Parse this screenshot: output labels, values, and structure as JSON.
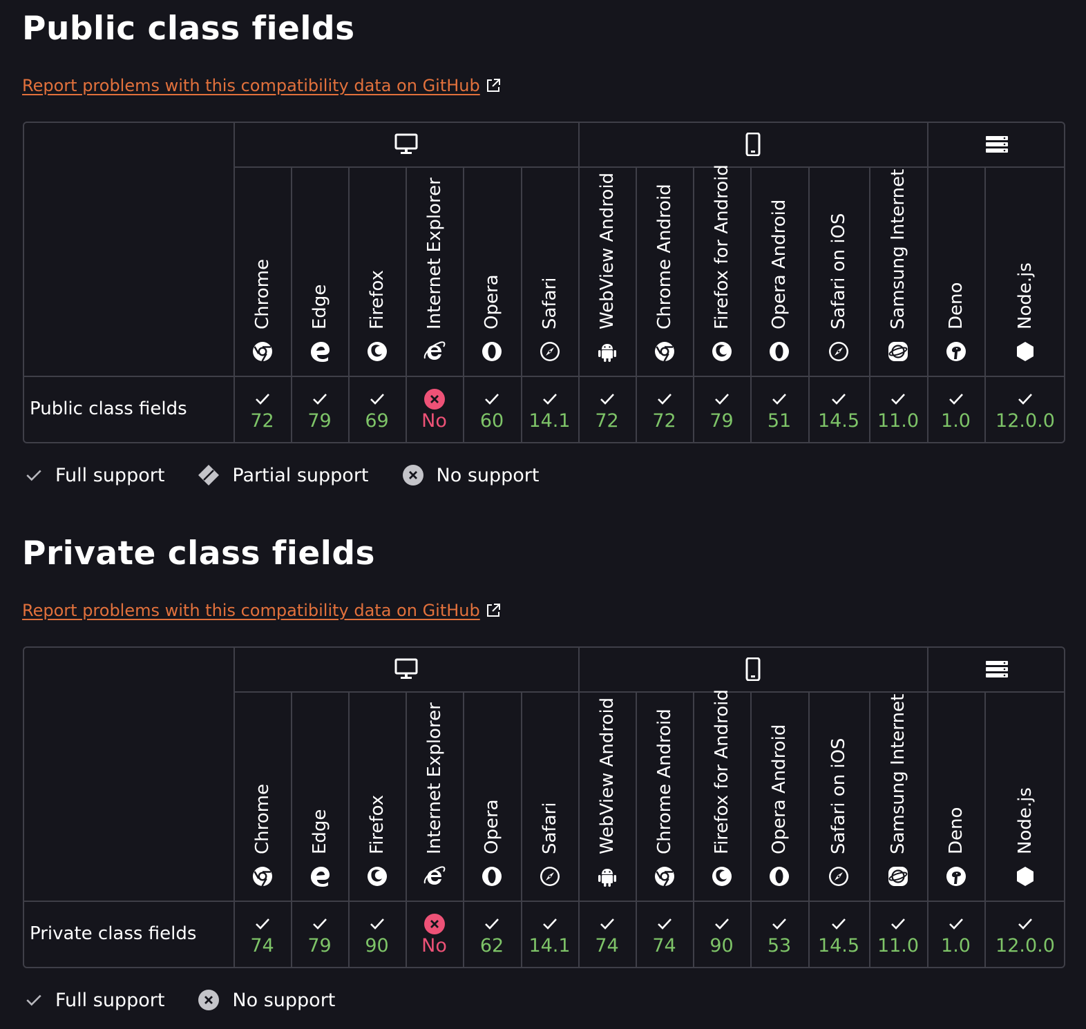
{
  "sections": [
    {
      "title": "Public class fields",
      "report_link": "Report problems with this compatibility data on GitHub",
      "feature": "Public class fields",
      "support": [
        {
          "version": "72",
          "status": "full"
        },
        {
          "version": "79",
          "status": "full"
        },
        {
          "version": "69",
          "status": "full"
        },
        {
          "version": "No",
          "status": "none"
        },
        {
          "version": "60",
          "status": "full"
        },
        {
          "version": "14.1",
          "status": "full"
        },
        {
          "version": "72",
          "status": "full"
        },
        {
          "version": "72",
          "status": "full"
        },
        {
          "version": "79",
          "status": "full"
        },
        {
          "version": "51",
          "status": "full"
        },
        {
          "version": "14.5",
          "status": "full"
        },
        {
          "version": "11.0",
          "status": "full"
        },
        {
          "version": "1.0",
          "status": "full"
        },
        {
          "version": "12.0.0",
          "status": "full"
        }
      ],
      "legend": [
        {
          "label": "Full support",
          "icon": "check-icon"
        },
        {
          "label": "Partial support",
          "icon": "partial-diamond-icon"
        },
        {
          "label": "No support",
          "icon": "no-support-icon"
        }
      ]
    },
    {
      "title": "Private class fields",
      "report_link": "Report problems with this compatibility data on GitHub",
      "feature": "Private class fields",
      "support": [
        {
          "version": "74",
          "status": "full"
        },
        {
          "version": "79",
          "status": "full"
        },
        {
          "version": "90",
          "status": "full"
        },
        {
          "version": "No",
          "status": "none"
        },
        {
          "version": "62",
          "status": "full"
        },
        {
          "version": "14.1",
          "status": "full"
        },
        {
          "version": "74",
          "status": "full"
        },
        {
          "version": "74",
          "status": "full"
        },
        {
          "version": "90",
          "status": "full"
        },
        {
          "version": "53",
          "status": "full"
        },
        {
          "version": "14.5",
          "status": "full"
        },
        {
          "version": "11.0",
          "status": "full"
        },
        {
          "version": "1.0",
          "status": "full"
        },
        {
          "version": "12.0.0",
          "status": "full"
        }
      ],
      "legend": [
        {
          "label": "Full support",
          "icon": "check-icon"
        },
        {
          "label": "No support",
          "icon": "no-support-icon"
        }
      ]
    }
  ],
  "platforms": [
    {
      "name": "desktop",
      "icon": "desktop-icon"
    },
    {
      "name": "mobile",
      "icon": "mobile-icon"
    },
    {
      "name": "server",
      "icon": "server-icon"
    }
  ],
  "browsers": [
    {
      "name": "Chrome",
      "icon": "chrome-icon"
    },
    {
      "name": "Edge",
      "icon": "edge-icon"
    },
    {
      "name": "Firefox",
      "icon": "firefox-icon"
    },
    {
      "name": "Internet Explorer",
      "icon": "internet-explorer-icon"
    },
    {
      "name": "Opera",
      "icon": "opera-icon"
    },
    {
      "name": "Safari",
      "icon": "safari-icon"
    },
    {
      "name": "WebView Android",
      "icon": "android-icon"
    },
    {
      "name": "Chrome Android",
      "icon": "chrome-icon"
    },
    {
      "name": "Firefox for Android",
      "icon": "firefox-icon"
    },
    {
      "name": "Opera Android",
      "icon": "opera-icon"
    },
    {
      "name": "Safari on iOS",
      "icon": "safari-icon"
    },
    {
      "name": "Samsung Internet",
      "icon": "samsung-internet-icon"
    },
    {
      "name": "Deno",
      "icon": "deno-icon"
    },
    {
      "name": "Node.js",
      "icon": "nodejs-icon"
    }
  ],
  "colors": {
    "background": "#15151c",
    "border": "#3f3f48",
    "link": "#e2713c",
    "full_support": "#7ec468",
    "no_support": "#ee5277"
  }
}
